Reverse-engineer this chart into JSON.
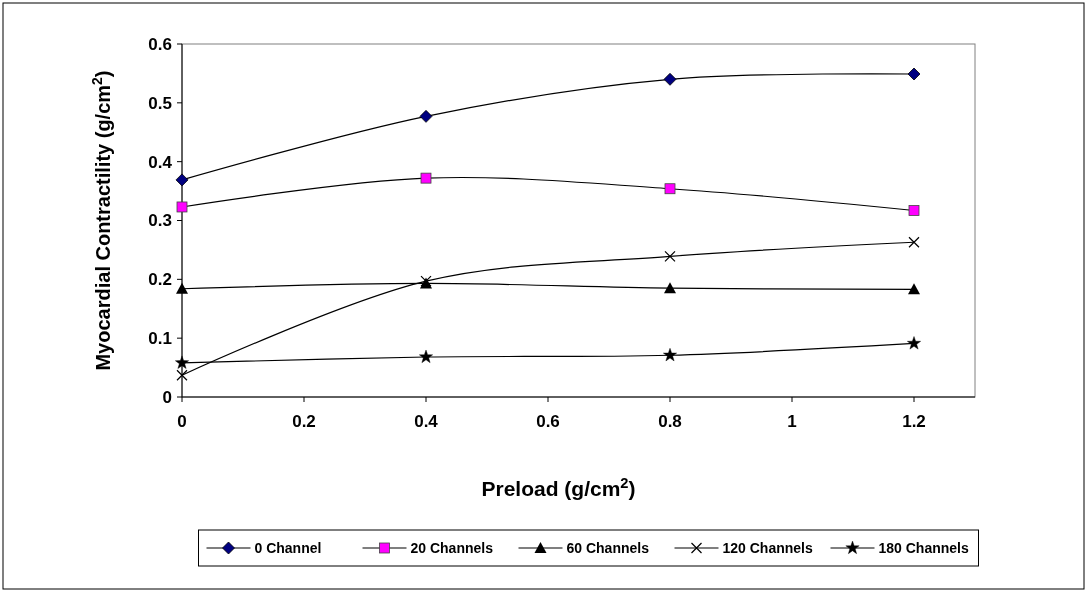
{
  "chart_data": {
    "type": "line",
    "xlabel": "Preload (g/cm$^{2}$)",
    "ylabel": "Myocardial Contractility (g/cm$^{2}$)",
    "x": [
      0,
      0.4,
      0.8,
      1.2
    ],
    "xlim": [
      0,
      1.3
    ],
    "xticks": [
      0,
      0.2,
      0.4,
      0.6,
      0.8,
      1,
      1.2
    ],
    "ylim": [
      0,
      0.6
    ],
    "yticks": [
      0,
      0.1,
      0.2,
      0.3,
      0.4,
      0.5,
      0.6
    ],
    "grid": false,
    "legend": "bottom",
    "line_style": "solid",
    "series": [
      {
        "name": "0 Channel",
        "color": "#000080",
        "marker": "diamond",
        "values": [
          0.369,
          0.477,
          0.54,
          0.549
        ]
      },
      {
        "name": "20 Channels",
        "color": "#ff00ff",
        "marker": "square",
        "values": [
          0.323,
          0.372,
          0.354,
          0.317
        ]
      },
      {
        "name": "60 Channels",
        "color": "#000000",
        "marker": "triangle",
        "values": [
          0.184,
          0.193,
          0.185,
          0.183
        ]
      },
      {
        "name": "120 Channels",
        "color": "#000000",
        "marker": "cross",
        "values": [
          0.037,
          0.197,
          0.239,
          0.263
        ]
      },
      {
        "name": "180 Channels",
        "color": "#000000",
        "marker": "star",
        "values": [
          0.058,
          0.068,
          0.071,
          0.091
        ]
      }
    ]
  }
}
